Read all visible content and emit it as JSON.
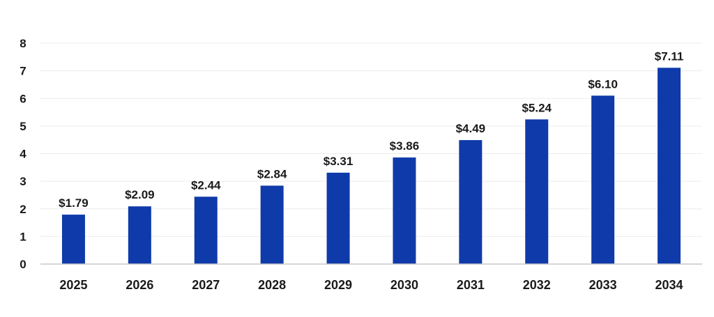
{
  "chart_data": {
    "type": "bar",
    "categories": [
      "2025",
      "2026",
      "2027",
      "2028",
      "2029",
      "2030",
      "2031",
      "2032",
      "2033",
      "2034"
    ],
    "values": [
      1.79,
      2.09,
      2.44,
      2.84,
      3.31,
      3.86,
      4.49,
      5.24,
      6.1,
      7.11
    ],
    "value_labels": [
      "$1.79",
      "$2.09",
      "$2.44",
      "$2.84",
      "$3.31",
      "$3.86",
      "$4.49",
      "$5.24",
      "$6.10",
      "$7.11"
    ],
    "yticks": [
      "0",
      "1",
      "2",
      "3",
      "4",
      "5",
      "6",
      "7",
      "8"
    ],
    "title": "",
    "xlabel": "",
    "ylabel": "",
    "ylim": [
      0,
      8
    ],
    "grid": true,
    "legend": "none",
    "bar_color": "#0f3aaa"
  }
}
